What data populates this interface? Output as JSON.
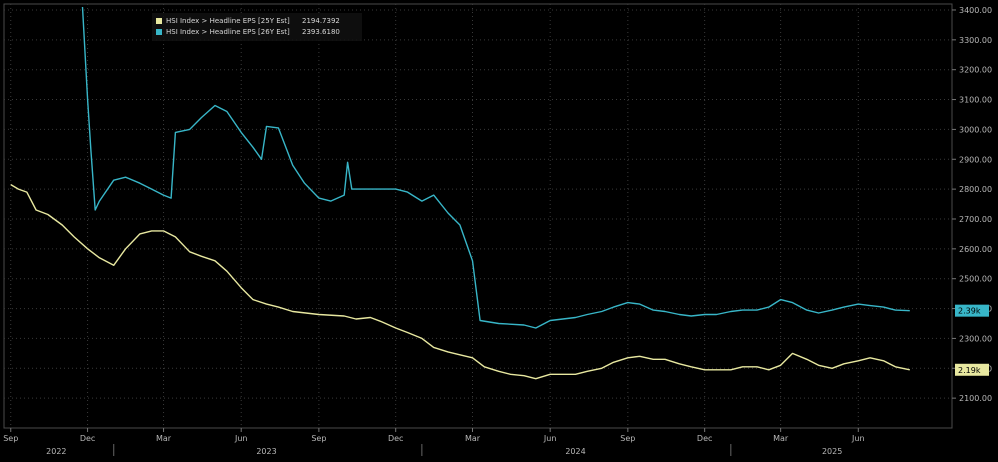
{
  "chart_data": {
    "type": "line",
    "title": "",
    "xlabel": "",
    "ylabel": "",
    "ylim": [
      2000,
      3420
    ],
    "grid": true,
    "legend_position": "top-left",
    "colors": {
      "background": "#000000",
      "grid": "#3a3a3a",
      "axis_text": "#b8b8b8"
    },
    "y_ticks": [
      "2100.00",
      "2200.00",
      "2300.00",
      "2400.00",
      "2500.00",
      "2600.00",
      "2700.00",
      "2800.00",
      "2900.00",
      "3000.00",
      "3100.00",
      "3200.00",
      "3300.00",
      "3400.00"
    ],
    "x_month_ticks": [
      "Sep",
      "Dec",
      "Mar",
      "Jun",
      "Sep",
      "Dec",
      "Mar",
      "Jun",
      "Sep",
      "Dec",
      "Mar",
      "Jun"
    ],
    "x_year_ticks": [
      "2022",
      "2023",
      "2024",
      "2025"
    ],
    "series": [
      {
        "name": "HSI Index > Headline EPS [25Y Est]",
        "legend_value": "2194.7392",
        "last_label": "2.19k",
        "color": "#e8e8a0",
        "values": [
          [
            "2022-09-01",
            2815
          ],
          [
            "2022-09-10",
            2800
          ],
          [
            "2022-09-20",
            2790
          ],
          [
            "2022-10-01",
            2730
          ],
          [
            "2022-10-15",
            2715
          ],
          [
            "2022-11-01",
            2680
          ],
          [
            "2022-11-15",
            2640
          ],
          [
            "2022-12-01",
            2600
          ],
          [
            "2022-12-15",
            2570
          ],
          [
            "2023-01-01",
            2545
          ],
          [
            "2023-01-15",
            2600
          ],
          [
            "2023-02-01",
            2650
          ],
          [
            "2023-02-15",
            2660
          ],
          [
            "2023-03-01",
            2660
          ],
          [
            "2023-03-15",
            2640
          ],
          [
            "2023-04-01",
            2590
          ],
          [
            "2023-04-15",
            2575
          ],
          [
            "2023-05-01",
            2560
          ],
          [
            "2023-05-15",
            2525
          ],
          [
            "2023-06-01",
            2470
          ],
          [
            "2023-06-15",
            2430
          ],
          [
            "2023-07-01",
            2415
          ],
          [
            "2023-07-15",
            2405
          ],
          [
            "2023-08-01",
            2390
          ],
          [
            "2023-09-01",
            2380
          ],
          [
            "2023-10-01",
            2375
          ],
          [
            "2023-10-15",
            2365
          ],
          [
            "2023-11-01",
            2370
          ],
          [
            "2023-11-15",
            2355
          ],
          [
            "2023-12-01",
            2335
          ],
          [
            "2023-12-15",
            2320
          ],
          [
            "2024-01-01",
            2300
          ],
          [
            "2024-01-15",
            2270
          ],
          [
            "2024-02-01",
            2255
          ],
          [
            "2024-02-15",
            2245
          ],
          [
            "2024-03-01",
            2235
          ],
          [
            "2024-03-15",
            2205
          ],
          [
            "2024-04-01",
            2190
          ],
          [
            "2024-04-15",
            2180
          ],
          [
            "2024-05-01",
            2175
          ],
          [
            "2024-05-15",
            2165
          ],
          [
            "2024-06-01",
            2180
          ],
          [
            "2024-06-15",
            2180
          ],
          [
            "2024-07-01",
            2180
          ],
          [
            "2024-07-15",
            2190
          ],
          [
            "2024-08-01",
            2200
          ],
          [
            "2024-08-15",
            2220
          ],
          [
            "2024-09-01",
            2235
          ],
          [
            "2024-09-15",
            2240
          ],
          [
            "2024-10-01",
            2230
          ],
          [
            "2024-10-15",
            2230
          ],
          [
            "2024-11-01",
            2215
          ],
          [
            "2024-11-15",
            2205
          ],
          [
            "2024-12-01",
            2195
          ],
          [
            "2024-12-15",
            2195
          ],
          [
            "2025-01-01",
            2195
          ],
          [
            "2025-01-15",
            2205
          ],
          [
            "2025-02-01",
            2205
          ],
          [
            "2025-02-15",
            2195
          ],
          [
            "2025-03-01",
            2210
          ],
          [
            "2025-03-15",
            2250
          ],
          [
            "2025-04-01",
            2230
          ],
          [
            "2025-04-15",
            2210
          ],
          [
            "2025-05-01",
            2200
          ],
          [
            "2025-05-15",
            2215
          ],
          [
            "2025-06-01",
            2225
          ],
          [
            "2025-06-15",
            2235
          ],
          [
            "2025-07-01",
            2225
          ],
          [
            "2025-07-15",
            2205
          ],
          [
            "2025-08-01",
            2195
          ]
        ]
      },
      {
        "name": "HSI Index > Headline EPS [26Y Est]",
        "legend_value": "2393.6180",
        "last_label": "2.39k",
        "color": "#38b6c8",
        "values": [
          [
            "2022-11-25",
            3410
          ],
          [
            "2022-12-01",
            3100
          ],
          [
            "2022-12-05",
            2930
          ],
          [
            "2022-12-10",
            2730
          ],
          [
            "2022-12-15",
            2760
          ],
          [
            "2023-01-01",
            2830
          ],
          [
            "2023-01-15",
            2840
          ],
          [
            "2023-02-01",
            2820
          ],
          [
            "2023-02-15",
            2800
          ],
          [
            "2023-03-01",
            2780
          ],
          [
            "2023-03-10",
            2770
          ],
          [
            "2023-03-15",
            2990
          ],
          [
            "2023-04-01",
            3000
          ],
          [
            "2023-04-15",
            3040
          ],
          [
            "2023-05-01",
            3080
          ],
          [
            "2023-05-15",
            3060
          ],
          [
            "2023-06-01",
            2990
          ],
          [
            "2023-06-15",
            2940
          ],
          [
            "2023-06-25",
            2900
          ],
          [
            "2023-07-01",
            3010
          ],
          [
            "2023-07-15",
            3005
          ],
          [
            "2023-08-01",
            2880
          ],
          [
            "2023-08-15",
            2820
          ],
          [
            "2023-09-01",
            2770
          ],
          [
            "2023-09-15",
            2760
          ],
          [
            "2023-10-01",
            2780
          ],
          [
            "2023-10-05",
            2890
          ],
          [
            "2023-10-10",
            2800
          ],
          [
            "2023-11-01",
            2800
          ],
          [
            "2023-12-01",
            2800
          ],
          [
            "2023-12-15",
            2790
          ],
          [
            "2024-01-01",
            2760
          ],
          [
            "2024-01-15",
            2780
          ],
          [
            "2024-02-01",
            2720
          ],
          [
            "2024-02-15",
            2680
          ],
          [
            "2024-03-01",
            2560
          ],
          [
            "2024-03-10",
            2360
          ],
          [
            "2024-04-01",
            2350
          ],
          [
            "2024-05-01",
            2345
          ],
          [
            "2024-05-15",
            2335
          ],
          [
            "2024-06-01",
            2360
          ],
          [
            "2024-07-01",
            2370
          ],
          [
            "2024-07-15",
            2380
          ],
          [
            "2024-08-01",
            2390
          ],
          [
            "2024-08-15",
            2405
          ],
          [
            "2024-09-01",
            2420
          ],
          [
            "2024-09-15",
            2415
          ],
          [
            "2024-10-01",
            2395
          ],
          [
            "2024-10-15",
            2390
          ],
          [
            "2024-11-01",
            2380
          ],
          [
            "2024-11-15",
            2375
          ],
          [
            "2024-12-01",
            2380
          ],
          [
            "2024-12-15",
            2380
          ],
          [
            "2025-01-01",
            2390
          ],
          [
            "2025-01-15",
            2395
          ],
          [
            "2025-02-01",
            2395
          ],
          [
            "2025-02-15",
            2405
          ],
          [
            "2025-03-01",
            2430
          ],
          [
            "2025-03-15",
            2420
          ],
          [
            "2025-04-01",
            2395
          ],
          [
            "2025-04-15",
            2385
          ],
          [
            "2025-05-01",
            2395
          ],
          [
            "2025-05-15",
            2405
          ],
          [
            "2025-06-01",
            2415
          ],
          [
            "2025-06-15",
            2410
          ],
          [
            "2025-07-01",
            2405
          ],
          [
            "2025-07-15",
            2395
          ],
          [
            "2025-08-01",
            2393
          ]
        ]
      }
    ]
  }
}
